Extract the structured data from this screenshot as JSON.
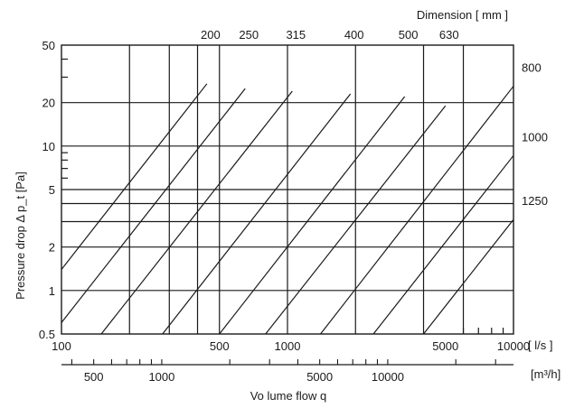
{
  "chart_data": {
    "type": "line",
    "x_scale": "log",
    "y_scale": "log",
    "xlim": [
      100,
      10000
    ],
    "ylim": [
      0.5,
      50
    ],
    "grid": true,
    "x_unit": "[ l/s ]",
    "x2_unit": "[m³/h]",
    "xlabel": "Vo lume flow q",
    "ylabel": "Pressure drop Δ p_t [Pa]",
    "dimension_label": "Dimension [ mm ]",
    "x_ticks": [
      {
        "value": 100,
        "label": "100"
      },
      {
        "value": 500,
        "label": "500"
      },
      {
        "value": 1000,
        "label": "1000"
      },
      {
        "value": 5000,
        "label": "5000"
      },
      {
        "value": 10000,
        "label": "10000"
      }
    ],
    "x2_ticks": [
      {
        "value": 500,
        "label": "500"
      },
      {
        "value": 1000,
        "label": "1000"
      },
      {
        "value": 5000,
        "label": "5000"
      },
      {
        "value": 10000,
        "label": "10000"
      }
    ],
    "y_ticks": [
      {
        "value": 0.5,
        "label": "0.5"
      },
      {
        "value": 1,
        "label": "1"
      },
      {
        "value": 2,
        "label": "2"
      },
      {
        "value": 5,
        "label": "5"
      },
      {
        "value": 10,
        "label": "10"
      },
      {
        "value": 20,
        "label": "20"
      },
      {
        "value": 50,
        "label": "50"
      }
    ],
    "v_grid": [
      200,
      300,
      400,
      500,
      1000,
      2000,
      4000,
      6000
    ],
    "h_grid": [
      1,
      2,
      3,
      4,
      5,
      10,
      20
    ],
    "series": [
      {
        "name": "200",
        "slope": 2,
        "points": [
          [
            100,
            1.4
          ],
          [
            440,
            27
          ]
        ]
      },
      {
        "name": "250",
        "slope": 2,
        "points": [
          [
            100,
            0.6
          ],
          [
            650,
            25
          ]
        ]
      },
      {
        "name": "315",
        "slope": 2,
        "points": [
          [
            150,
            0.5
          ],
          [
            1050,
            24
          ]
        ]
      },
      {
        "name": "400",
        "slope": 2,
        "points": [
          [
            280,
            0.5
          ],
          [
            1900,
            23
          ]
        ]
      },
      {
        "name": "500",
        "slope": 2,
        "points": [
          [
            500,
            0.5
          ],
          [
            3300,
            22
          ]
        ]
      },
      {
        "name": "630",
        "slope": 2,
        "points": [
          [
            800,
            0.5
          ],
          [
            5000,
            19
          ]
        ]
      },
      {
        "name": "800",
        "slope": 2,
        "points": [
          [
            1400,
            0.5
          ],
          [
            10000,
            26
          ]
        ]
      },
      {
        "name": "1000",
        "slope": 2,
        "points": [
          [
            2400,
            0.5
          ],
          [
            10000,
            8.6
          ]
        ]
      },
      {
        "name": "1250",
        "slope": 2,
        "points": [
          [
            4000,
            0.5
          ],
          [
            10000,
            3.1
          ]
        ]
      }
    ]
  }
}
